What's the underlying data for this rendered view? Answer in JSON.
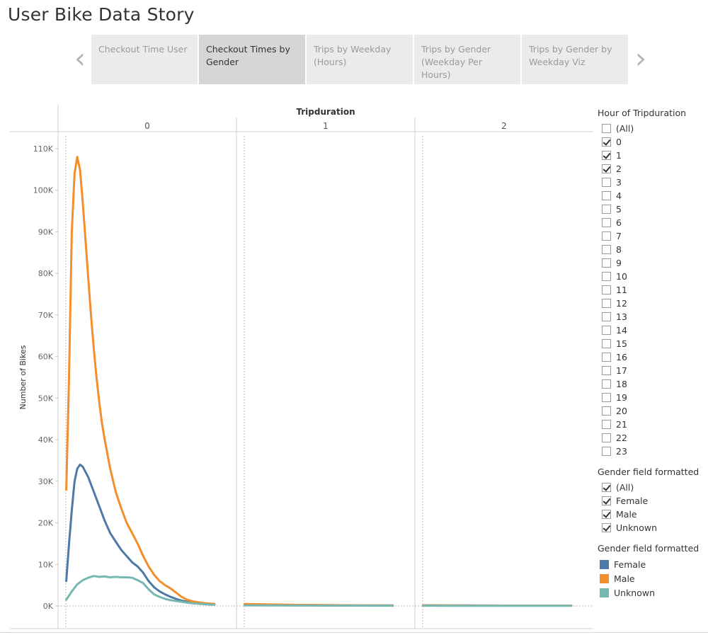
{
  "story": {
    "title": "User Bike Data Story",
    "prev_icon": "chevron-left-icon",
    "next_icon": "chevron-right-icon",
    "tabs": [
      {
        "label": "Checkout Time User",
        "active": false
      },
      {
        "label": "Checkout Times by Gender",
        "active": true
      },
      {
        "label": "Trips by Weekday (Hours)",
        "active": false
      },
      {
        "label": "Trips by Gender (Weekday Per Hours)",
        "active": false
      },
      {
        "label": "Trips by Gender by Weekday Viz",
        "active": false
      }
    ]
  },
  "chart_data": {
    "type": "line",
    "header": "Tripduration",
    "ylabel": "Number of Bikes",
    "ylim": [
      0,
      110000
    ],
    "yticks": [
      0,
      10000,
      20000,
      30000,
      40000,
      50000,
      60000,
      70000,
      80000,
      90000,
      100000,
      110000
    ],
    "ytick_labels": [
      "0K",
      "10K",
      "20K",
      "30K",
      "40K",
      "50K",
      "60K",
      "70K",
      "80K",
      "90K",
      "100K",
      "110K"
    ],
    "panels": [
      "0",
      "1",
      "2"
    ],
    "x_domain": [
      -3,
      62
    ],
    "series": [
      {
        "name": "Female",
        "color": "#4e79a7",
        "panels": [
          [
            [
              0,
              6000
            ],
            [
              1,
              15000
            ],
            [
              2,
              23000
            ],
            [
              3,
              30000
            ],
            [
              4,
              33000
            ],
            [
              5,
              34000
            ],
            [
              6,
              33500
            ],
            [
              8,
              31000
            ],
            [
              10,
              27500
            ],
            [
              12,
              24000
            ],
            [
              14,
              20500
            ],
            [
              16,
              17500
            ],
            [
              18,
              15500
            ],
            [
              20,
              13500
            ],
            [
              22,
              12000
            ],
            [
              24,
              10500
            ],
            [
              26,
              9500
            ],
            [
              28,
              8000
            ],
            [
              30,
              6000
            ],
            [
              32,
              4500
            ],
            [
              34,
              3500
            ],
            [
              36,
              2800
            ],
            [
              38,
              2200
            ],
            [
              40,
              1700
            ],
            [
              42,
              1300
            ],
            [
              44,
              1000
            ],
            [
              46,
              800
            ],
            [
              48,
              650
            ],
            [
              50,
              500
            ],
            [
              52,
              400
            ],
            [
              54,
              350
            ]
          ],
          [
            [
              0,
              350
            ],
            [
              10,
              250
            ],
            [
              20,
              200
            ],
            [
              30,
              150
            ],
            [
              40,
              120
            ],
            [
              50,
              100
            ],
            [
              54,
              100
            ]
          ],
          [
            [
              0,
              150
            ],
            [
              10,
              120
            ],
            [
              20,
              100
            ],
            [
              30,
              90
            ],
            [
              40,
              80
            ],
            [
              50,
              80
            ],
            [
              54,
              80
            ]
          ]
        ]
      },
      {
        "name": "Male",
        "color": "#f28e2b",
        "panels": [
          [
            [
              0,
              28000
            ],
            [
              1,
              55000
            ],
            [
              2,
              90000
            ],
            [
              3,
              104000
            ],
            [
              4,
              108000
            ],
            [
              5,
              105000
            ],
            [
              6,
              97000
            ],
            [
              7,
              88000
            ],
            [
              8,
              79000
            ],
            [
              9,
              70000
            ],
            [
              10,
              62000
            ],
            [
              11,
              55000
            ],
            [
              12,
              49000
            ],
            [
              13,
              44000
            ],
            [
              14,
              40000
            ],
            [
              16,
              33000
            ],
            [
              18,
              27500
            ],
            [
              20,
              23500
            ],
            [
              22,
              20000
            ],
            [
              24,
              17500
            ],
            [
              26,
              15000
            ],
            [
              28,
              12000
            ],
            [
              30,
              9500
            ],
            [
              32,
              7500
            ],
            [
              34,
              6000
            ],
            [
              36,
              5000
            ],
            [
              38,
              4200
            ],
            [
              40,
              3200
            ],
            [
              42,
              2200
            ],
            [
              44,
              1500
            ],
            [
              46,
              1100
            ],
            [
              48,
              900
            ],
            [
              50,
              700
            ],
            [
              52,
              600
            ],
            [
              54,
              500
            ]
          ],
          [
            [
              0,
              500
            ],
            [
              10,
              350
            ],
            [
              20,
              250
            ],
            [
              30,
              200
            ],
            [
              40,
              150
            ],
            [
              50,
              120
            ],
            [
              54,
              120
            ]
          ],
          [
            [
              0,
              150
            ],
            [
              10,
              120
            ],
            [
              20,
              100
            ],
            [
              30,
              90
            ],
            [
              40,
              80
            ],
            [
              50,
              80
            ],
            [
              54,
              80
            ]
          ]
        ]
      },
      {
        "name": "Unknown",
        "color": "#76b7b2",
        "panels": [
          [
            [
              0,
              1500
            ],
            [
              2,
              3500
            ],
            [
              4,
              5200
            ],
            [
              6,
              6200
            ],
            [
              8,
              6800
            ],
            [
              10,
              7200
            ],
            [
              12,
              7000
            ],
            [
              14,
              7100
            ],
            [
              16,
              6900
            ],
            [
              18,
              7000
            ],
            [
              20,
              6900
            ],
            [
              22,
              6900
            ],
            [
              24,
              6800
            ],
            [
              26,
              6200
            ],
            [
              28,
              5500
            ],
            [
              30,
              4000
            ],
            [
              32,
              2800
            ],
            [
              34,
              2200
            ],
            [
              36,
              1700
            ],
            [
              38,
              1400
            ],
            [
              40,
              1200
            ],
            [
              42,
              1000
            ],
            [
              44,
              800
            ],
            [
              46,
              650
            ],
            [
              48,
              550
            ],
            [
              50,
              450
            ],
            [
              52,
              350
            ],
            [
              54,
              300
            ]
          ],
          [
            [
              0,
              150
            ],
            [
              10,
              120
            ],
            [
              20,
              100
            ],
            [
              30,
              90
            ],
            [
              40,
              80
            ],
            [
              50,
              70
            ],
            [
              54,
              70
            ]
          ],
          [
            [
              0,
              60
            ],
            [
              10,
              50
            ],
            [
              20,
              50
            ],
            [
              30,
              40
            ],
            [
              40,
              40
            ],
            [
              50,
              40
            ],
            [
              54,
              40
            ]
          ]
        ]
      }
    ]
  },
  "filters": {
    "hour": {
      "title": "Hour of Tripduration",
      "items": [
        {
          "label": "(All)",
          "checked": false
        },
        {
          "label": "0",
          "checked": true
        },
        {
          "label": "1",
          "checked": true
        },
        {
          "label": "2",
          "checked": true
        },
        {
          "label": "3",
          "checked": false
        },
        {
          "label": "4",
          "checked": false
        },
        {
          "label": "5",
          "checked": false
        },
        {
          "label": "6",
          "checked": false
        },
        {
          "label": "7",
          "checked": false
        },
        {
          "label": "8",
          "checked": false
        },
        {
          "label": "9",
          "checked": false
        },
        {
          "label": "10",
          "checked": false
        },
        {
          "label": "11",
          "checked": false
        },
        {
          "label": "12",
          "checked": false
        },
        {
          "label": "13",
          "checked": false
        },
        {
          "label": "14",
          "checked": false
        },
        {
          "label": "15",
          "checked": false
        },
        {
          "label": "16",
          "checked": false
        },
        {
          "label": "17",
          "checked": false
        },
        {
          "label": "18",
          "checked": false
        },
        {
          "label": "19",
          "checked": false
        },
        {
          "label": "20",
          "checked": false
        },
        {
          "label": "21",
          "checked": false
        },
        {
          "label": "22",
          "checked": false
        },
        {
          "label": "23",
          "checked": false
        }
      ]
    },
    "gender": {
      "title": "Gender field formatted",
      "items": [
        {
          "label": "(All)",
          "checked": true
        },
        {
          "label": "Female",
          "checked": true
        },
        {
          "label": "Male",
          "checked": true
        },
        {
          "label": "Unknown",
          "checked": true
        }
      ]
    }
  },
  "legend": {
    "title": "Gender field formatted",
    "items": [
      {
        "label": "Female",
        "color": "#4e79a7"
      },
      {
        "label": "Male",
        "color": "#f28e2b"
      },
      {
        "label": "Unknown",
        "color": "#76b7b2"
      }
    ]
  }
}
